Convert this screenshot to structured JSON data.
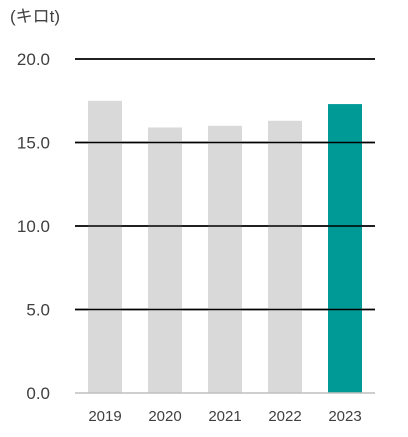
{
  "chart_data": {
    "type": "bar",
    "unit_label": "(キロt)",
    "categories": [
      "2019",
      "2020",
      "2021",
      "2022",
      "2023"
    ],
    "values": [
      17.5,
      15.9,
      16.0,
      16.3,
      17.3
    ],
    "ylim": [
      0,
      20
    ],
    "yticks": [
      "0.0",
      "5.0",
      "10.0",
      "15.0",
      "20.0"
    ],
    "ytick_values": [
      0,
      5,
      10,
      15,
      20
    ],
    "grid": true,
    "colors": {
      "default_bar": "#d9d9d9",
      "highlight_bar": "#009a96",
      "gridline": "#000000",
      "baseline": "#bfbfbf",
      "text": "#404040"
    },
    "highlight_category": "2023"
  }
}
